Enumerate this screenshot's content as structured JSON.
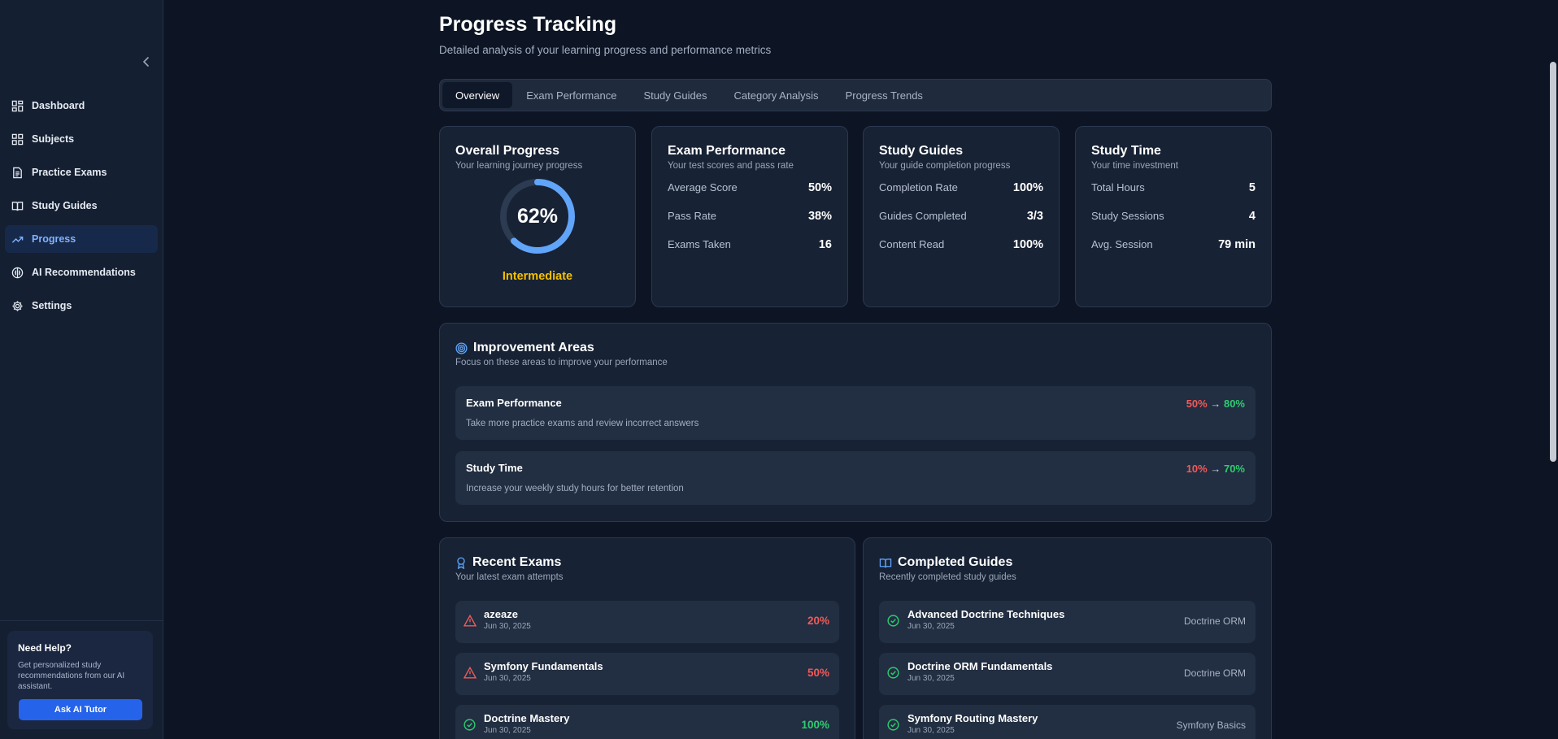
{
  "sidebar": {
    "items": [
      {
        "label": "Dashboard",
        "icon": "dashboard-icon"
      },
      {
        "label": "Subjects",
        "icon": "grid-icon"
      },
      {
        "label": "Practice Exams",
        "icon": "document-icon"
      },
      {
        "label": "Study Guides",
        "icon": "book-icon"
      },
      {
        "label": "Progress",
        "icon": "trend-icon",
        "active": true
      },
      {
        "label": "AI Recommendations",
        "icon": "brain-icon"
      },
      {
        "label": "Settings",
        "icon": "gear-icon"
      }
    ],
    "help": {
      "title": "Need Help?",
      "text": "Get personalized study recommendations from our AI assistant.",
      "button": "Ask AI Tutor"
    }
  },
  "header": {
    "title": "Progress Tracking",
    "subtitle": "Detailed analysis of your learning progress and performance metrics"
  },
  "tabs": [
    "Overview",
    "Exam Performance",
    "Study Guides",
    "Category Analysis",
    "Progress Trends"
  ],
  "overall": {
    "title": "Overall Progress",
    "subtitle": "Your learning journey progress",
    "percent_label": "62%",
    "percent": 62,
    "level": "Intermediate"
  },
  "exam_perf": {
    "title": "Exam Performance",
    "subtitle": "Your test scores and pass rate",
    "rows": [
      {
        "label": "Average Score",
        "value": "50%"
      },
      {
        "label": "Pass Rate",
        "value": "38%"
      },
      {
        "label": "Exams Taken",
        "value": "16"
      }
    ]
  },
  "study_guides": {
    "title": "Study Guides",
    "subtitle": "Your guide completion progress",
    "rows": [
      {
        "label": "Completion Rate",
        "value": "100%"
      },
      {
        "label": "Guides Completed",
        "value": "3/3"
      },
      {
        "label": "Content Read",
        "value": "100%"
      }
    ]
  },
  "study_time": {
    "title": "Study Time",
    "subtitle": "Your time investment",
    "rows": [
      {
        "label": "Total Hours",
        "value": "5"
      },
      {
        "label": "Study Sessions",
        "value": "4"
      },
      {
        "label": "Avg. Session",
        "value": "79 min"
      }
    ]
  },
  "improvement": {
    "title": "Improvement Areas",
    "subtitle": "Focus on these areas to improve your performance",
    "items": [
      {
        "title": "Exam Performance",
        "desc": "Take more practice exams and review incorrect answers",
        "from": "50%",
        "arrow": "→",
        "to": "80%"
      },
      {
        "title": "Study Time",
        "desc": "Increase your weekly study hours for better retention",
        "from": "10%",
        "arrow": "→",
        "to": "70%"
      }
    ]
  },
  "recent_exams": {
    "title": "Recent Exams",
    "subtitle": "Your latest exam attempts",
    "items": [
      {
        "name": "azeaze",
        "date": "Jun 30, 2025",
        "score": "20%",
        "status": "fail"
      },
      {
        "name": "Symfony Fundamentals",
        "date": "Jun 30, 2025",
        "score": "50%",
        "status": "fail"
      },
      {
        "name": "Doctrine Mastery",
        "date": "Jun 30, 2025",
        "score": "100%",
        "status": "pass"
      }
    ]
  },
  "completed_guides": {
    "title": "Completed Guides",
    "subtitle": "Recently completed study guides",
    "items": [
      {
        "name": "Advanced Doctrine Techniques",
        "date": "Jun 30, 2025",
        "category": "Doctrine ORM"
      },
      {
        "name": "Doctrine ORM Fundamentals",
        "date": "Jun 30, 2025",
        "category": "Doctrine ORM"
      },
      {
        "name": "Symfony Routing Mastery",
        "date": "Jun 30, 2025",
        "category": "Symfony Basics"
      }
    ]
  },
  "colors": {
    "accent": "#2563eb",
    "danger": "#f05a5a",
    "success": "#2ecc71",
    "warning": "#f5c000",
    "ring": "#60a5fa"
  }
}
